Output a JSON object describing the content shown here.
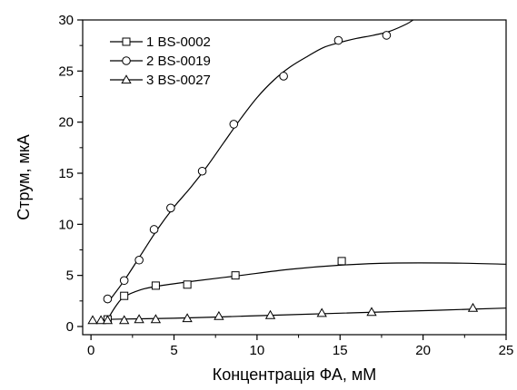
{
  "chart_data": {
    "type": "scatter",
    "xlabel": "Концентрація ФА, мМ",
    "ylabel": "Струм, мкА",
    "xlim": [
      -0.5,
      25
    ],
    "ylim": [
      -0.8,
      30
    ],
    "xticks": [
      0,
      5,
      10,
      15,
      20,
      25
    ],
    "yticks": [
      0,
      5,
      10,
      15,
      20,
      25,
      30
    ],
    "grid": false,
    "legend": "top-left",
    "series": [
      {
        "name": "1 BS-0002",
        "marker": "square",
        "x": [
          1.0,
          2.0,
          3.9,
          5.8,
          8.7,
          15.1
        ],
        "y": [
          0.7,
          3.0,
          4.0,
          4.1,
          5.0,
          6.4
        ],
        "fit": [
          [
            1.0,
            0.7
          ],
          [
            1.5,
            2.0
          ],
          [
            2.0,
            2.9
          ],
          [
            3.0,
            3.6
          ],
          [
            4.0,
            3.95
          ],
          [
            6.0,
            4.4
          ],
          [
            9.0,
            5.0
          ],
          [
            12.0,
            5.6
          ],
          [
            15.0,
            6.0
          ],
          [
            18.0,
            6.2
          ],
          [
            22.0,
            6.2
          ],
          [
            25.0,
            6.1
          ]
        ]
      },
      {
        "name": "2 BS-0019",
        "marker": "circle",
        "x": [
          1.0,
          2.0,
          2.9,
          3.8,
          4.8,
          6.7,
          8.6,
          11.6,
          14.9,
          17.8
        ],
        "y": [
          2.7,
          4.5,
          6.5,
          9.5,
          11.6,
          15.2,
          19.8,
          24.5,
          28.0,
          28.5
        ],
        "fit": [
          [
            1.0,
            2.3
          ],
          [
            2.0,
            4.5
          ],
          [
            3.0,
            7.0
          ],
          [
            4.0,
            9.5
          ],
          [
            5.0,
            11.7
          ],
          [
            6.0,
            13.6
          ],
          [
            7.0,
            15.7
          ],
          [
            8.0,
            18.0
          ],
          [
            9.0,
            20.3
          ],
          [
            10.0,
            22.4
          ],
          [
            11.0,
            24.1
          ],
          [
            12.0,
            25.4
          ],
          [
            13.0,
            26.4
          ],
          [
            14.0,
            27.3
          ],
          [
            15.0,
            27.8
          ],
          [
            16.0,
            28.2
          ],
          [
            17.0,
            28.5
          ],
          [
            18.0,
            28.9
          ],
          [
            19.0,
            29.6
          ],
          [
            19.4,
            30.0
          ]
        ]
      },
      {
        "name": "3 BS-0027",
        "marker": "triangle",
        "x": [
          0.1,
          0.6,
          1.0,
          2.0,
          2.9,
          3.9,
          5.8,
          7.7,
          10.8,
          13.9,
          16.9,
          23.0
        ],
        "y": [
          0.6,
          0.6,
          0.6,
          0.6,
          0.7,
          0.7,
          0.8,
          1.0,
          1.1,
          1.3,
          1.4,
          1.8
        ],
        "fit": [
          [
            1.0,
            0.7
          ],
          [
            3.0,
            0.75
          ],
          [
            6.0,
            0.85
          ],
          [
            9.0,
            1.0
          ],
          [
            12.0,
            1.15
          ],
          [
            15.0,
            1.3
          ],
          [
            18.0,
            1.45
          ],
          [
            21.0,
            1.6
          ],
          [
            25.0,
            1.8
          ]
        ]
      }
    ]
  }
}
